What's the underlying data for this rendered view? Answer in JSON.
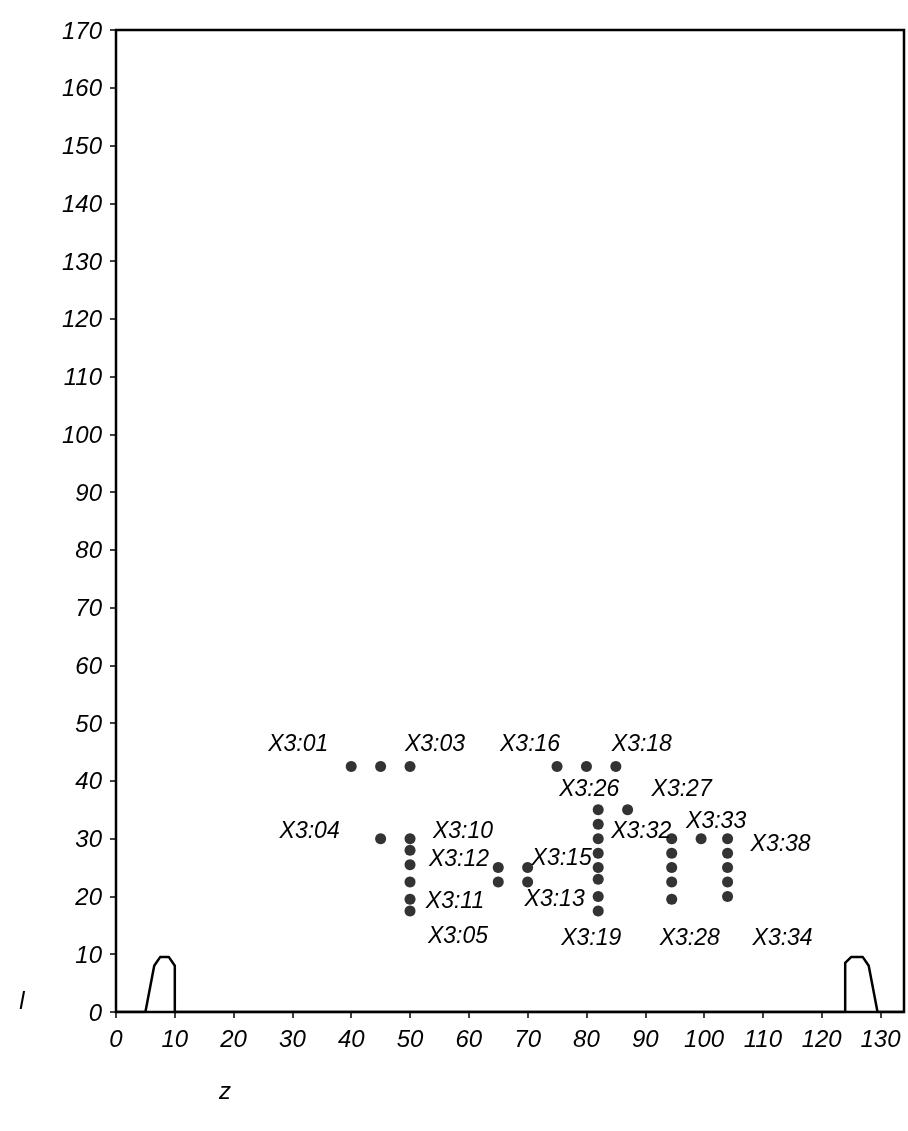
{
  "chart_data": {
    "type": "scatter",
    "xlabel": "z",
    "ylabel": "l",
    "xlim": [
      0,
      134
    ],
    "ylim": [
      0,
      170
    ],
    "xticks": [
      0,
      10,
      20,
      30,
      40,
      50,
      60,
      70,
      80,
      90,
      100,
      110,
      120,
      130
    ],
    "yticks": [
      0,
      10,
      20,
      30,
      40,
      50,
      60,
      70,
      80,
      90,
      100,
      110,
      120,
      130,
      140,
      150,
      160,
      170
    ],
    "grid": false,
    "series": [
      {
        "color": "#000000",
        "marker": "circle",
        "x": [
          40,
          45,
          50,
          45,
          50,
          50,
          50,
          50,
          50,
          50,
          65,
          65,
          70,
          70,
          75,
          80,
          85,
          82,
          82,
          82,
          82,
          82,
          82,
          82,
          82,
          87,
          94.5,
          94.5,
          94.5,
          94.5,
          94.5,
          99.5,
          104,
          104,
          104,
          104,
          104
        ],
        "values": [
          42.5,
          42.5,
          42.5,
          30,
          30,
          28,
          25.5,
          22.5,
          19.5,
          17.5,
          25,
          22.5,
          25,
          22.5,
          42.5,
          42.5,
          42.5,
          35,
          32.5,
          30,
          27.5,
          25,
          23,
          20,
          17.5,
          35,
          30,
          27.5,
          25,
          22.5,
          19.5,
          30,
          30,
          27.5,
          25,
          22.5,
          20
        ]
      },
      {
        "type": "line",
        "color": "#000000",
        "marker": "none",
        "line_style": "solid",
        "x": [
          0,
          5,
          6.5,
          7.5,
          9,
          10,
          10,
          124,
          124,
          125,
          127,
          128,
          129.5,
          134
        ],
        "values": [
          0,
          0,
          8,
          9.5,
          9.5,
          8,
          0,
          0,
          8.5,
          9.5,
          9.5,
          8,
          0,
          0
        ]
      }
    ],
    "annotations": [
      {
        "text": "X3:01",
        "x": 40,
        "y": 42.5
      },
      {
        "text": "X3:03",
        "x": 50,
        "y": 42.5
      },
      {
        "text": "X3:16",
        "x": 75,
        "y": 42.5
      },
      {
        "text": "X3:18",
        "x": 85,
        "y": 42.5
      },
      {
        "text": "X3:26",
        "x": 82,
        "y": 35
      },
      {
        "text": "X3:27",
        "x": 87,
        "y": 35
      },
      {
        "text": "X3:04",
        "x": 45,
        "y": 30
      },
      {
        "text": "X3:10",
        "x": 50,
        "y": 30
      },
      {
        "text": "X3:12",
        "x": 50,
        "y": 28
      },
      {
        "text": "X3:11",
        "x": 50,
        "y": 19.5
      },
      {
        "text": "X3:05",
        "x": 50,
        "y": 17.5
      },
      {
        "text": "X3:15",
        "x": 70,
        "y": 25
      },
      {
        "text": "X3:13",
        "x": 70,
        "y": 22.5
      },
      {
        "text": "X3:19",
        "x": 82,
        "y": 17.5
      },
      {
        "text": "X3:32",
        "x": 82,
        "y": 32.5
      },
      {
        "text": "X3:33",
        "x": 99.5,
        "y": 30
      },
      {
        "text": "X3:38",
        "x": 104,
        "y": 30
      },
      {
        "text": "X3:28",
        "x": 94.5,
        "y": 19.5
      },
      {
        "text": "X3:34",
        "x": 104,
        "y": 20
      }
    ]
  }
}
